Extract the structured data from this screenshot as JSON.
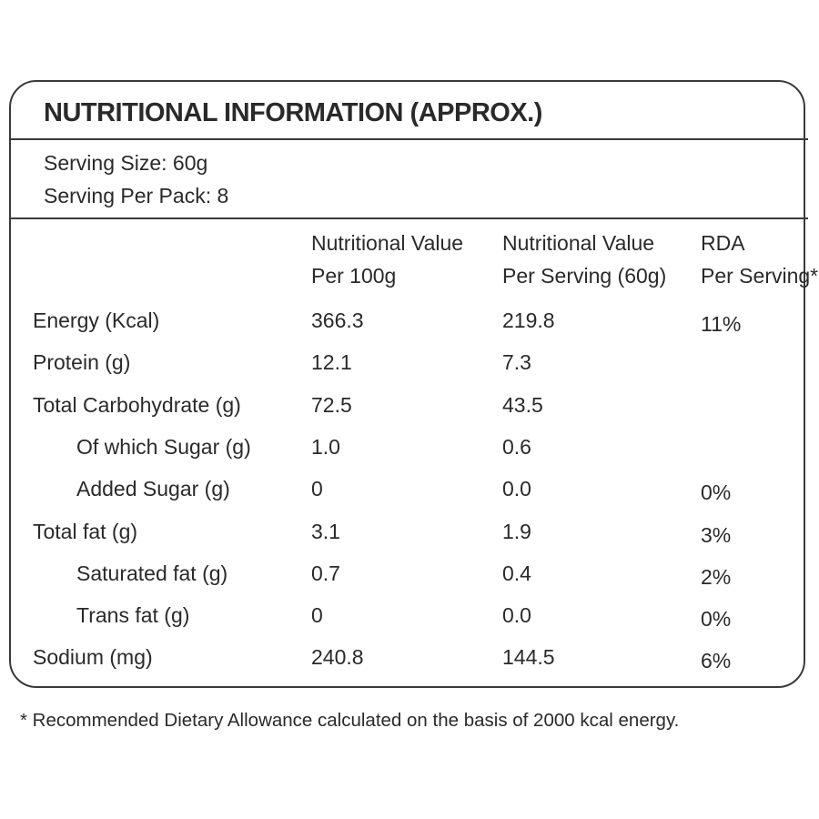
{
  "title": "NUTRITIONAL INFORMATION (APPROX.)",
  "serving": [
    "Serving Size: 60g",
    "Serving Per Pack: 8"
  ],
  "table": {
    "headers": [
      [
        "Nutritional Value",
        "Per 100g"
      ],
      [
        "Nutritional Value",
        "Per Serving (60g)"
      ],
      [
        "RDA",
        "Per Serving*"
      ]
    ],
    "rows": [
      {
        "label": "Energy (Kcal)",
        "per100g": "366.3",
        "perServing": "219.8",
        "rda": "11%",
        "indent": false
      },
      {
        "label": "Protein (g)",
        "per100g": "12.1",
        "perServing": "7.3",
        "indent": false
      },
      {
        "label": "Total Carbohydrate (g)",
        "per100g": "72.5",
        "perServing": "43.5",
        "indent": false
      },
      {
        "label": "Of which Sugar (g)",
        "per100g": "1.0",
        "perServing": "0.6",
        "indent": true
      },
      {
        "label": "Added Sugar (g)",
        "per100g": "0",
        "perServing": "0.0",
        "rda": "0%",
        "indent": true
      },
      {
        "label": "Total fat (g)",
        "per100g": "3.1",
        "perServing": "1.9",
        "rda": "3%",
        "indent": false
      },
      {
        "label": "Saturated fat (g)",
        "per100g": "0.7",
        "perServing": "0.4",
        "rda": "2%",
        "indent": true
      },
      {
        "label": "Trans fat (g)",
        "per100g": "0",
        "perServing": "0.0",
        "rda": "0%",
        "indent": true
      },
      {
        "label": "Sodium (mg)",
        "per100g": "240.8",
        "perServing": "144.5",
        "rda": "6%",
        "indent": false
      }
    ]
  },
  "footnote": "* Recommended Dietary Allowance calculated on the basis of 2000 kcal energy."
}
